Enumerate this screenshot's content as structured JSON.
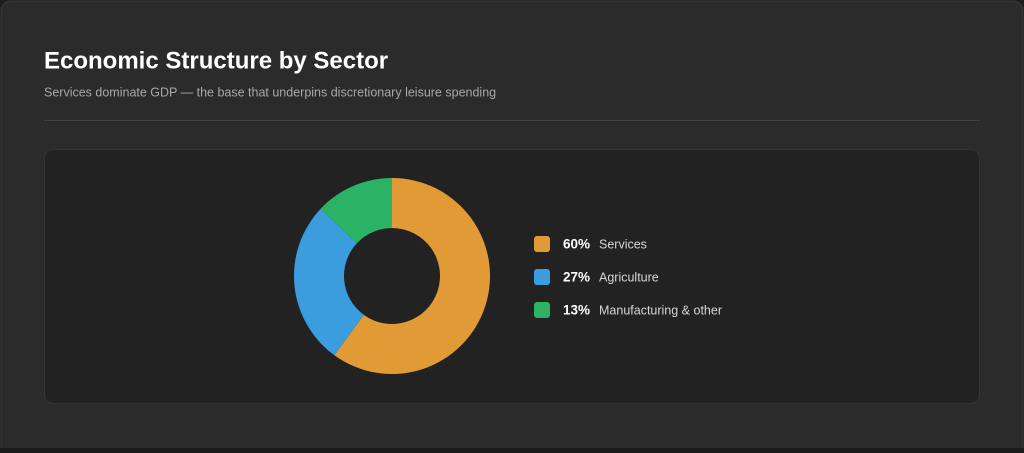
{
  "chart_data": {
    "type": "donut",
    "title": "Economic Structure by Sector",
    "subtitle": "Services dominate GDP — the base that underpins discretionary leisure spending",
    "categories": [
      "Services",
      "Agriculture",
      "Manufacturing & other"
    ],
    "values": [
      60,
      27,
      13
    ],
    "value_labels": [
      "60%",
      "27%",
      "13%"
    ],
    "colors": [
      "#e09b36",
      "#3b9ddd",
      "#2bb264"
    ]
  }
}
